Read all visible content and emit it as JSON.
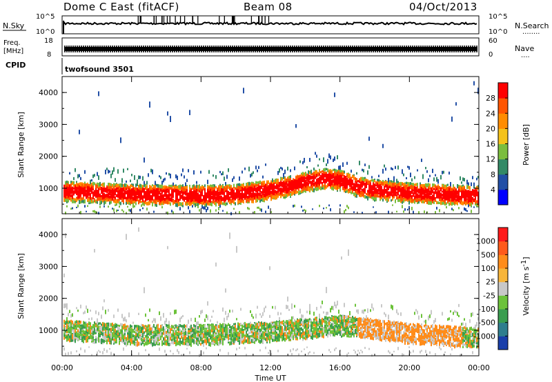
{
  "header": {
    "station": "Dome C East (fitACF)",
    "beam": "Beam 08",
    "date": "04/Oct/2013"
  },
  "noise_panel": {
    "left_label": "N.Sky",
    "right_label": "N.Search",
    "right_dots": "........",
    "left_ticks": [
      "10^5",
      "10^0"
    ],
    "right_ticks": [
      "10^5",
      "10^0"
    ]
  },
  "freq_panel": {
    "left_label_line1": "Freq.",
    "left_label_line2": "[MHz]",
    "right_label": "Nave",
    "right_dots": "....",
    "left_ticks": [
      "18",
      "8"
    ],
    "right_ticks": [
      "60",
      "0"
    ]
  },
  "cpid": {
    "label": "CPID",
    "value": "twofsound 3501"
  },
  "power_panel": {
    "ylabel": "Slant Range [km]",
    "yticks": [
      "4000",
      "3000",
      "2000",
      "1000"
    ],
    "colorbar_label": "Power [dB]",
    "colorbar_ticks": [
      "28",
      "24",
      "20",
      "16",
      "12",
      "8",
      "4"
    ],
    "colors": [
      "#0000ff",
      "#224fa6",
      "#338a66",
      "#7bbd3e",
      "#f5c21a",
      "#ff8c00",
      "#ff5500",
      "#ff0000"
    ]
  },
  "velocity_panel": {
    "ylabel": "Slant Range [km]",
    "yticks": [
      "4000",
      "3000",
      "2000",
      "1000"
    ],
    "colorbar_label": "Velocity [m s",
    "colorbar_label_sup": "-1",
    "colorbar_label_end": "]",
    "colorbar_ticks": [
      "1000",
      "500",
      "100",
      "25",
      "-25",
      "-100",
      "-500",
      "-1000"
    ],
    "colors": [
      "#1a3faa",
      "#2f7e8e",
      "#3a9d4f",
      "#6cc23a",
      "#c8c8c8",
      "#f7b53a",
      "#ff8c1a",
      "#ff5a1a",
      "#ff1a1a"
    ]
  },
  "xaxis": {
    "label": "Time UT",
    "ticks": [
      "00:00",
      "04:00",
      "08:00",
      "12:00",
      "16:00",
      "20:00",
      "00:00"
    ]
  },
  "chart_data": {
    "type": "heatmap",
    "title": "Dome C East (fitACF)",
    "x_label": "Time UT",
    "x_range_hours": [
      0,
      24
    ],
    "y_label": "Slant Range [km]",
    "y_range_km": [
      200,
      4500
    ],
    "series": [
      {
        "name": "Power [dB]",
        "scale": [
          0,
          32
        ],
        "main_band_center_km": [
          [
            0,
            950
          ],
          [
            2,
            900
          ],
          [
            4,
            850
          ],
          [
            6,
            830
          ],
          [
            8,
            820
          ],
          [
            10,
            850
          ],
          [
            12,
            1000
          ],
          [
            13,
            1100
          ],
          [
            14,
            1250
          ],
          [
            15,
            1350
          ],
          [
            16,
            1300
          ],
          [
            17,
            1100
          ],
          [
            18,
            1000
          ],
          [
            20,
            900
          ],
          [
            22,
            850
          ],
          [
            24,
            800
          ]
        ]
      },
      {
        "name": "Velocity [m s-1]",
        "scale": [
          -1000,
          1000
        ],
        "main_band_center_km": [
          [
            0,
            1050
          ],
          [
            4,
            900
          ],
          [
            8,
            900
          ],
          [
            12,
            1000
          ],
          [
            16,
            1200
          ],
          [
            20,
            950
          ],
          [
            24,
            800
          ]
        ]
      }
    ]
  }
}
